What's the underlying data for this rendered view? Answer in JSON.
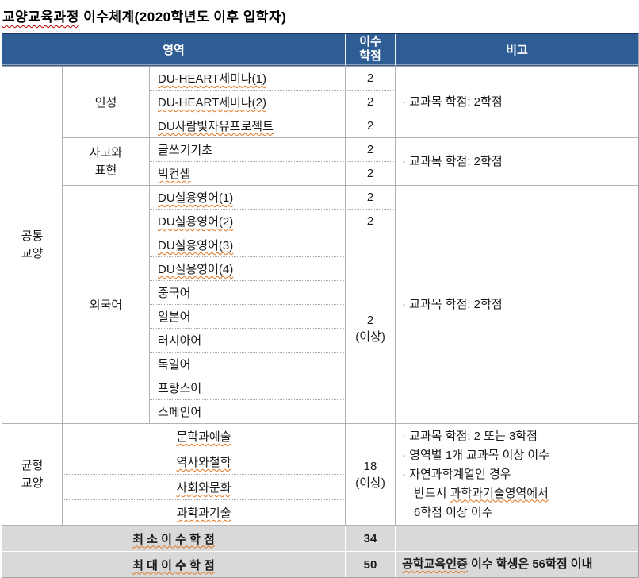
{
  "title": {
    "marked": "교양교육과정",
    "rest": " 이수체계(2020학년도 이후 입학자)"
  },
  "header": {
    "area": "영역",
    "credits_line1": "이수",
    "credits_line2": "학점",
    "remarks": "비고"
  },
  "common": {
    "group_line1": "공통",
    "group_line2": "교양",
    "inseong": {
      "label": "인성",
      "courses": [
        {
          "name": "DU-HEART세미나(1)",
          "credit": "2"
        },
        {
          "name": "DU-HEART세미나(2)",
          "credit": "2"
        },
        {
          "name": "DU사람빛자유프로젝트",
          "credit": "2"
        }
      ],
      "remark": "· 교과목 학점: 2학점"
    },
    "sago": {
      "label_line1": "사고와",
      "label_line2": "표현",
      "courses": [
        {
          "name": "글쓰기기초",
          "credit": "2"
        },
        {
          "name": "빅컨셉",
          "credit": "2"
        }
      ],
      "remark": "· 교과목 학점: 2학점"
    },
    "foreign": {
      "label": "외국어",
      "courses_with_credit": [
        {
          "name": "DU실용영어(1)",
          "credit": "2"
        },
        {
          "name": "DU실용영어(2)",
          "credit": "2"
        }
      ],
      "courses_merged": [
        "DU실용영어(3)",
        "DU실용영어(4)",
        "중국어",
        "일본어",
        "러시아어",
        "독일어",
        "프랑스어",
        "스페인어"
      ],
      "merged_credit": {
        "value": "2",
        "qualifier": "(이상)"
      },
      "remark": "· 교과목 학점: 2학점"
    }
  },
  "balance": {
    "group_line1": "균형",
    "group_line2": "교양",
    "areas": [
      "문학과예술",
      "역사와철학",
      "사회와문화",
      "과학과기술"
    ],
    "credit": {
      "value": "18",
      "qualifier": "(이상)"
    },
    "remark_line1": "· 교과목 학점: 2 또는 3학점",
    "remark_line2": "· 영역별 1개 교과목 이상 이수",
    "remark_line3": "· 자연과학계열인 경우",
    "remark_line4_prefix": "반드시 ",
    "remark_line4_marked": "과학과기술영역에서",
    "remark_line5": "6학점 이상 이수"
  },
  "summary": {
    "min": {
      "label": "최 소 이 수 학 점",
      "credit": "34",
      "remark": ""
    },
    "max": {
      "label": "최 대 이 수 학 점",
      "credit": "50",
      "remark_marked": "공학교육인증",
      "remark_rest": " 이수 학생은 56학점 이내"
    }
  },
  "colors": {
    "header_bg": "#2e5c94",
    "header_top_border": "#17375e",
    "grid": "#b3b3b3",
    "summary_bg": "#d9d9d9",
    "spell_underline": "#e2751d",
    "title_underline": "#c00000"
  }
}
